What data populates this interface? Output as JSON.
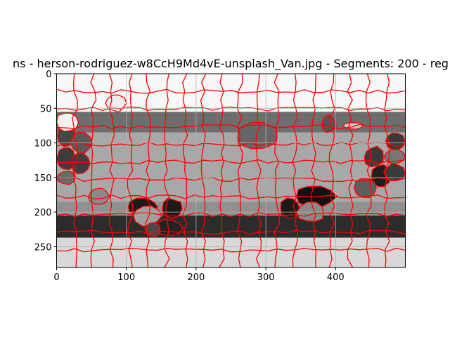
{
  "chart_data": {
    "type": "heatmap",
    "title": "ns - herson-rodriguez-w8CcH9Md4vE-unsplash_Van.jpg - Segments: 200 - reg",
    "xlabel": "",
    "ylabel": "",
    "xlim": [
      0,
      500
    ],
    "ylim": [
      280,
      0
    ],
    "xticks": [
      0,
      100,
      200,
      300,
      400
    ],
    "yticks": [
      0,
      50,
      100,
      150,
      200,
      250
    ],
    "grid": true,
    "colormap": "gray",
    "boundary_color": "#ff0000",
    "bands": [
      {
        "y": [
          0,
          55
        ],
        "shade": "#f8f8f8"
      },
      {
        "y": [
          55,
          85
        ],
        "shade": "#6e6e6e"
      },
      {
        "y": [
          85,
          185
        ],
        "shade": "#a8a8a8"
      },
      {
        "y": [
          185,
          205
        ],
        "shade": "#909090"
      },
      {
        "y": [
          205,
          237
        ],
        "shade": "#2c2c2c"
      },
      {
        "y": [
          237,
          280
        ],
        "shade": "#d8d8d8"
      }
    ],
    "regions": [
      {
        "x": [
          0,
          28
        ],
        "y": [
          75,
          105
        ],
        "shade": "#474747"
      },
      {
        "x": [
          0,
          28
        ],
        "y": [
          105,
          140
        ],
        "shade": "#3c3c3c"
      },
      {
        "x": [
          0,
          28
        ],
        "y": [
          140,
          160
        ],
        "shade": "#6a6a6a"
      },
      {
        "x": [
          20,
          50
        ],
        "y": [
          85,
          115
        ],
        "shade": "#5a5a5a"
      },
      {
        "x": [
          20,
          48
        ],
        "y": [
          115,
          145
        ],
        "shade": "#3e3e3e"
      },
      {
        "x": [
          440,
          470
        ],
        "y": [
          105,
          135
        ],
        "shade": "#3a3a3a"
      },
      {
        "x": [
          450,
          480
        ],
        "y": [
          130,
          165
        ],
        "shade": "#1e1e1e"
      },
      {
        "x": [
          470,
          500
        ],
        "y": [
          85,
          110
        ],
        "shade": "#3a3a3a"
      },
      {
        "x": [
          470,
          500
        ],
        "y": [
          110,
          130
        ],
        "shade": "#777777"
      },
      {
        "x": [
          470,
          500
        ],
        "y": [
          130,
          155
        ],
        "shade": "#3a3a3a"
      },
      {
        "x": [
          425,
          460
        ],
        "y": [
          150,
          180
        ],
        "shade": "#5e5e5e"
      },
      {
        "x": [
          340,
          400
        ],
        "y": [
          160,
          195
        ],
        "shade": "#111111"
      },
      {
        "x": [
          320,
          350
        ],
        "y": [
          180,
          210
        ],
        "shade": "#1a1a1a"
      },
      {
        "x": [
          345,
          385
        ],
        "y": [
          185,
          215
        ],
        "shade": "#8a8a8a"
      },
      {
        "x": [
          100,
          145
        ],
        "y": [
          180,
          205
        ],
        "shade": "#1a1a1a"
      },
      {
        "x": [
          110,
          150
        ],
        "y": [
          190,
          220
        ],
        "shade": "#a0a0a0"
      },
      {
        "x": [
          150,
          180
        ],
        "y": [
          180,
          210
        ],
        "shade": "#1a1a1a"
      },
      {
        "x": [
          140,
          180
        ],
        "y": [
          210,
          235
        ],
        "shade": "#222222"
      },
      {
        "x": [
          125,
          150
        ],
        "y": [
          215,
          235
        ],
        "shade": "#4a4a4a"
      },
      {
        "x": [
          45,
          75
        ],
        "y": [
          165,
          190
        ],
        "shade": "#8a8a8a"
      },
      {
        "x": [
          255,
          320
        ],
        "y": [
          70,
          110
        ],
        "shade": "#666666"
      },
      {
        "x": [
          380,
          400
        ],
        "y": [
          60,
          85
        ],
        "shade": "#555555"
      },
      {
        "x": [
          410,
          440
        ],
        "y": [
          70,
          80
        ],
        "shade": "#c8c8c8"
      },
      {
        "x": [
          70,
          100
        ],
        "y": [
          30,
          55
        ],
        "shade": "#ededed"
      },
      {
        "x": [
          0,
          30
        ],
        "y": [
          55,
          85
        ],
        "shade": "#f2f2f2"
      }
    ]
  }
}
